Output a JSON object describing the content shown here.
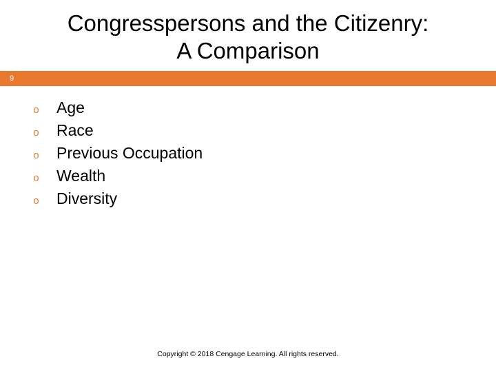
{
  "title_line1": "Congresspersons and the Citizenry:",
  "title_line2": "A Comparison",
  "slide_number": "9",
  "accent_color": "#e8792f",
  "bullet_char": "o",
  "bullets": {
    "b0": "Age",
    "b1": "Race",
    "b2": "Previous Occupation",
    "b3": "Wealth",
    "b4": "Diversity"
  },
  "footer_text": "Copyright © 2018 Cengage Learning. All rights reserved."
}
